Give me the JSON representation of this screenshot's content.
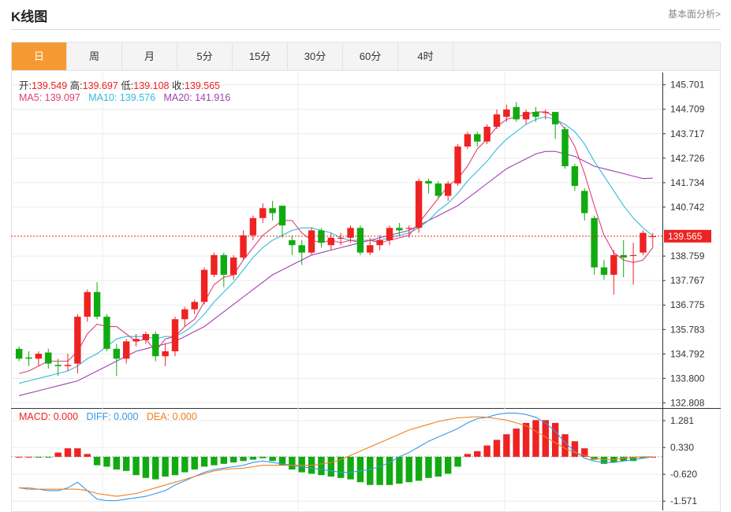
{
  "header": {
    "title": "K线图",
    "link": "基本面分析>"
  },
  "tabs": [
    {
      "label": "日",
      "active": true
    },
    {
      "label": "周",
      "active": false
    },
    {
      "label": "月",
      "active": false
    },
    {
      "label": "5分",
      "active": false
    },
    {
      "label": "15分",
      "active": false
    },
    {
      "label": "30分",
      "active": false
    },
    {
      "label": "60分",
      "active": false
    },
    {
      "label": "4时",
      "active": false
    }
  ],
  "ohlc_info": {
    "open_label": "开:",
    "open": "139.549",
    "high_label": "高:",
    "high": "139.697",
    "low_label": "低:",
    "low": "139.108",
    "close_label": "收:",
    "close": "139.565"
  },
  "ma_info": {
    "ma5_label": "MA5: ",
    "ma5": "139.097",
    "ma10_label": "MA10: ",
    "ma10": "139.576",
    "ma20_label": "MA20: ",
    "ma20": "141.916"
  },
  "macd_info": {
    "macd_label": "MACD: ",
    "macd": "0.000",
    "diff_label": "DIFF: ",
    "diff": "0.000",
    "dea_label": "DEA: ",
    "dea": "0.000"
  },
  "colors": {
    "up": "#ee2222",
    "down": "#11aa11",
    "ma5": "#e0407a",
    "ma10": "#33bbdd",
    "ma20": "#a040b0",
    "diff": "#3399ee",
    "dea": "#f07f20",
    "accent": "#f59a32"
  },
  "chart_data": [
    {
      "type": "candlestick",
      "price_axis_ticks": [
        "145.701",
        "144.709",
        "143.717",
        "142.726",
        "141.734",
        "140.742",
        "139.565",
        "138.759",
        "137.767",
        "136.775",
        "135.783",
        "134.792",
        "133.800",
        "132.808"
      ],
      "last_price": "139.565",
      "ylim": [
        132.6,
        146.2
      ],
      "candles": [
        [
          135.0,
          134.6,
          135.1,
          134.5
        ],
        [
          134.65,
          134.6,
          134.9,
          134.3
        ],
        [
          134.6,
          134.8,
          134.9,
          134.3
        ],
        [
          134.85,
          134.4,
          135.0,
          134.2
        ],
        [
          134.35,
          134.3,
          134.6,
          133.9
        ],
        [
          134.3,
          134.35,
          134.8,
          134.1
        ],
        [
          134.4,
          136.3,
          136.4,
          134.0
        ],
        [
          136.3,
          137.3,
          137.4,
          136.1
        ],
        [
          137.3,
          136.3,
          137.7,
          136.2
        ],
        [
          136.3,
          135.0,
          136.4,
          134.9
        ],
        [
          135.0,
          134.6,
          135.2,
          133.9
        ],
        [
          134.6,
          135.3,
          135.4,
          134.4
        ],
        [
          135.3,
          135.4,
          135.6,
          135.1
        ],
        [
          135.35,
          135.6,
          135.7,
          135.2
        ],
        [
          135.6,
          134.7,
          135.7,
          134.5
        ],
        [
          134.7,
          134.9,
          135.2,
          134.3
        ],
        [
          134.9,
          136.2,
          136.3,
          134.7
        ],
        [
          136.2,
          136.6,
          136.7,
          135.9
        ],
        [
          136.6,
          136.9,
          137.0,
          136.4
        ],
        [
          136.9,
          138.2,
          138.3,
          136.8
        ],
        [
          138.0,
          138.8,
          138.9,
          137.9
        ],
        [
          138.8,
          138.0,
          138.9,
          137.5
        ],
        [
          138.0,
          138.7,
          138.8,
          137.8
        ],
        [
          138.7,
          139.6,
          139.8,
          138.6
        ],
        [
          139.6,
          140.3,
          140.4,
          139.4
        ],
        [
          140.3,
          140.7,
          140.9,
          140.1
        ],
        [
          140.7,
          140.5,
          141.0,
          140.2
        ],
        [
          140.8,
          140.0,
          140.8,
          139.5
        ],
        [
          139.4,
          139.2,
          139.6,
          138.8
        ],
        [
          139.2,
          138.9,
          139.4,
          138.4
        ],
        [
          138.9,
          139.8,
          139.9,
          138.8
        ],
        [
          139.8,
          139.3,
          139.9,
          139.1
        ],
        [
          139.2,
          139.5,
          139.7,
          139.0
        ],
        [
          139.5,
          139.5,
          139.7,
          139.2
        ],
        [
          139.5,
          139.9,
          140.0,
          139.3
        ],
        [
          139.9,
          138.9,
          140.0,
          138.8
        ],
        [
          138.9,
          139.2,
          139.5,
          138.8
        ],
        [
          139.2,
          139.4,
          139.6,
          139.0
        ],
        [
          139.4,
          139.9,
          140.0,
          139.2
        ],
        [
          139.9,
          139.8,
          140.1,
          139.6
        ],
        [
          139.9,
          139.9,
          140.0,
          139.5
        ],
        [
          139.9,
          141.8,
          141.9,
          139.7
        ],
        [
          141.8,
          141.7,
          141.9,
          141.3
        ],
        [
          141.7,
          141.2,
          141.8,
          141.1
        ],
        [
          141.2,
          141.7,
          141.8,
          141.0
        ],
        [
          141.7,
          143.2,
          143.3,
          141.6
        ],
        [
          143.2,
          143.7,
          143.8,
          143.1
        ],
        [
          143.7,
          143.4,
          143.8,
          143.2
        ],
        [
          143.4,
          144.0,
          144.1,
          143.3
        ],
        [
          144.0,
          144.5,
          144.7,
          143.9
        ],
        [
          144.4,
          144.7,
          144.9,
          144.2
        ],
        [
          144.8,
          144.3,
          145.0,
          144.2
        ],
        [
          144.3,
          144.6,
          144.7,
          144.1
        ],
        [
          144.6,
          144.4,
          144.8,
          144.2
        ],
        [
          144.6,
          144.6,
          144.7,
          144.3
        ],
        [
          144.6,
          144.1,
          144.6,
          143.5
        ],
        [
          143.9,
          142.4,
          144.0,
          142.3
        ],
        [
          142.4,
          141.6,
          142.5,
          141.4
        ],
        [
          141.4,
          140.5,
          141.5,
          140.2
        ],
        [
          140.3,
          138.3,
          140.4,
          138.0
        ],
        [
          138.3,
          138.0,
          138.6,
          137.8
        ],
        [
          138.0,
          138.8,
          139.0,
          137.2
        ],
        [
          138.8,
          138.7,
          139.4,
          137.9
        ],
        [
          138.8,
          138.8,
          139.3,
          137.6
        ],
        [
          138.9,
          139.7,
          139.8,
          138.8
        ],
        [
          139.549,
          139.565,
          139.697,
          139.108
        ]
      ],
      "ma5": [
        134.0,
        134.1,
        134.3,
        134.5,
        134.5,
        134.5,
        134.9,
        135.6,
        136.0,
        135.9,
        135.9,
        135.6,
        135.3,
        135.4,
        134.9,
        135.4,
        135.5,
        135.9,
        136.2,
        136.9,
        137.6,
        137.9,
        138.0,
        138.6,
        139.1,
        139.6,
        139.9,
        140.2,
        140.2,
        139.7,
        139.4,
        139.3,
        139.4,
        139.3,
        139.4,
        139.3,
        139.4,
        139.3,
        139.4,
        139.5,
        139.6,
        140.1,
        140.6,
        141.1,
        141.6,
        141.9,
        142.4,
        143.1,
        143.5,
        144.0,
        144.3,
        144.4,
        144.5,
        144.6,
        144.6,
        144.4,
        143.9,
        143.2,
        142.1,
        140.8,
        139.6,
        138.9,
        138.6,
        138.5,
        138.6,
        139.1
      ],
      "ma10": [
        133.6,
        133.7,
        133.8,
        133.9,
        134.0,
        134.1,
        134.3,
        134.6,
        134.8,
        135.1,
        135.4,
        135.5,
        135.5,
        135.5,
        135.4,
        135.5,
        135.5,
        135.7,
        136.0,
        136.4,
        136.9,
        137.3,
        137.7,
        138.2,
        138.7,
        139.1,
        139.4,
        139.6,
        139.8,
        139.9,
        139.9,
        139.8,
        139.7,
        139.5,
        139.4,
        139.4,
        139.4,
        139.4,
        139.5,
        139.6,
        139.7,
        139.9,
        140.2,
        140.6,
        140.9,
        141.3,
        141.8,
        142.2,
        142.6,
        143.1,
        143.5,
        143.8,
        144.1,
        144.3,
        144.4,
        144.3,
        144.1,
        143.8,
        143.3,
        142.6,
        142.0,
        141.4,
        140.8,
        140.3,
        139.9,
        139.576
      ],
      "ma20": [
        133.1,
        133.2,
        133.3,
        133.4,
        133.5,
        133.6,
        133.7,
        133.9,
        134.1,
        134.3,
        134.5,
        134.7,
        134.9,
        135.0,
        135.1,
        135.2,
        135.3,
        135.5,
        135.7,
        135.9,
        136.2,
        136.5,
        136.8,
        137.1,
        137.4,
        137.7,
        138.0,
        138.2,
        138.4,
        138.6,
        138.8,
        138.9,
        139.0,
        139.1,
        139.2,
        139.3,
        139.4,
        139.5,
        139.6,
        139.7,
        139.8,
        140.0,
        140.2,
        140.4,
        140.6,
        140.8,
        141.1,
        141.4,
        141.7,
        142.0,
        142.3,
        142.5,
        142.7,
        142.9,
        143.0,
        143.0,
        142.9,
        142.8,
        142.6,
        142.4,
        142.3,
        142.2,
        142.1,
        142.0,
        141.9,
        141.916
      ]
    },
    {
      "type": "bar",
      "name": "MACD",
      "axis_ticks": [
        "1.281",
        "0.330",
        "-0.620",
        "-1.571"
      ],
      "ylim": [
        -1.9,
        1.7
      ],
      "histogram": [
        0.0,
        0.0,
        -0.02,
        -0.02,
        0.15,
        0.3,
        0.3,
        0.1,
        -0.3,
        -0.35,
        -0.45,
        -0.5,
        -0.65,
        -0.75,
        -0.8,
        -0.7,
        -0.65,
        -0.55,
        -0.45,
        -0.35,
        -0.3,
        -0.25,
        -0.2,
        -0.15,
        -0.1,
        -0.05,
        -0.15,
        -0.3,
        -0.45,
        -0.55,
        -0.6,
        -0.65,
        -0.7,
        -0.75,
        -0.8,
        -0.9,
        -1.0,
        -1.0,
        -1.0,
        -0.95,
        -0.9,
        -0.85,
        -0.75,
        -0.7,
        -0.6,
        -0.35,
        0.1,
        0.2,
        0.4,
        0.6,
        0.8,
        1.0,
        1.2,
        1.3,
        1.3,
        1.2,
        0.8,
        0.55,
        0.3,
        -0.1,
        -0.25,
        -0.2,
        -0.15,
        -0.15,
        -0.05,
        0.0
      ],
      "diff": [
        -1.1,
        -1.15,
        -1.15,
        -1.2,
        -1.2,
        -1.1,
        -0.9,
        -1.2,
        -1.5,
        -1.55,
        -1.55,
        -1.5,
        -1.45,
        -1.4,
        -1.3,
        -1.2,
        -1.0,
        -0.85,
        -0.7,
        -0.55,
        -0.45,
        -0.4,
        -0.35,
        -0.3,
        -0.2,
        -0.15,
        -0.2,
        -0.25,
        -0.3,
        -0.35,
        -0.4,
        -0.45,
        -0.5,
        -0.55,
        -0.55,
        -0.5,
        -0.45,
        -0.35,
        -0.2,
        0.0,
        0.15,
        0.35,
        0.55,
        0.7,
        0.85,
        1.0,
        1.2,
        1.35,
        1.4,
        1.5,
        1.55,
        1.55,
        1.5,
        1.4,
        1.2,
        0.9,
        0.5,
        0.2,
        -0.05,
        -0.15,
        -0.2,
        -0.2,
        -0.15,
        -0.1,
        -0.05,
        0.0
      ],
      "dea": [
        -1.1,
        -1.1,
        -1.15,
        -1.15,
        -1.15,
        -1.15,
        -1.15,
        -1.2,
        -1.3,
        -1.35,
        -1.4,
        -1.35,
        -1.3,
        -1.2,
        -1.1,
        -1.0,
        -0.9,
        -0.8,
        -0.7,
        -0.6,
        -0.5,
        -0.45,
        -0.42,
        -0.4,
        -0.35,
        -0.3,
        -0.3,
        -0.3,
        -0.3,
        -0.3,
        -0.3,
        -0.25,
        -0.2,
        -0.1,
        0.05,
        0.2,
        0.35,
        0.5,
        0.65,
        0.8,
        0.95,
        1.05,
        1.15,
        1.25,
        1.32,
        1.38,
        1.4,
        1.42,
        1.4,
        1.35,
        1.3,
        1.2,
        1.1,
        0.9,
        0.7,
        0.5,
        0.3,
        0.15,
        0.05,
        -0.05,
        -0.1,
        -0.1,
        -0.05,
        -0.02,
        0.0,
        0.0
      ]
    }
  ]
}
